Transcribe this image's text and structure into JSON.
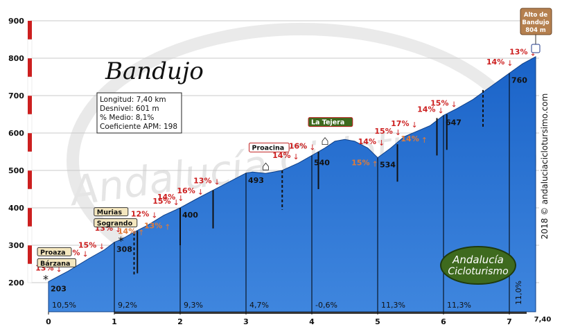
{
  "title": "Bandujo",
  "info": {
    "longitud": "Longitud: 7,40 km",
    "desnivel": "Desnivel: 601 m",
    "medio": "% Medio: 8,1%",
    "apm": "Coeficiente APM: 198"
  },
  "summit_label": [
    "Alto de",
    "Bandujo",
    "804 m"
  ],
  "side_credit": "2018 © andaluciaciclotursimo.com",
  "watermark": "Andalucía Cicloturismo",
  "colors": {
    "fill": "#1a63c8",
    "fill_light": "#4f93e6",
    "gradient_red": "#cc1f1f",
    "orange": "#e07b39",
    "place_fill": "#f4e7bf",
    "summit_fill": "#b5804f",
    "highlight_fill": "#3e6a1e"
  },
  "chart_data": {
    "type": "area",
    "xlim": [
      0,
      7.4
    ],
    "ylim": [
      200,
      900
    ],
    "x_ticks": [
      0,
      1,
      2,
      3,
      4,
      5,
      6,
      7
    ],
    "x_tick_labels": [
      "0",
      "1",
      "2",
      "3",
      "4",
      "5",
      "6",
      "7"
    ],
    "x_end_label": "7,40",
    "y_ticks": [
      200,
      300,
      400,
      500,
      600,
      700,
      800,
      900
    ],
    "profile": [
      [
        0,
        203
      ],
      [
        0.3,
        231
      ],
      [
        0.6,
        263
      ],
      [
        0.85,
        288
      ],
      [
        1,
        308
      ],
      [
        1.1,
        315
      ],
      [
        1.3,
        335
      ],
      [
        1.5,
        353
      ],
      [
        1.75,
        380
      ],
      [
        2,
        400
      ],
      [
        2.25,
        424
      ],
      [
        2.5,
        447
      ],
      [
        2.75,
        470
      ],
      [
        3,
        493
      ],
      [
        3.1,
        496
      ],
      [
        3.3,
        492
      ],
      [
        3.55,
        500
      ],
      [
        3.8,
        520
      ],
      [
        4,
        540
      ],
      [
        4.2,
        560
      ],
      [
        4.35,
        578
      ],
      [
        4.5,
        583
      ],
      [
        4.65,
        578
      ],
      [
        4.85,
        560
      ],
      [
        5,
        534
      ],
      [
        5.2,
        560
      ],
      [
        5.4,
        590
      ],
      [
        5.6,
        605
      ],
      [
        5.8,
        620
      ],
      [
        6,
        647
      ],
      [
        6.2,
        665
      ],
      [
        6.45,
        690
      ],
      [
        6.7,
        722
      ],
      [
        7,
        760
      ],
      [
        7.2,
        785
      ],
      [
        7.4,
        804
      ]
    ],
    "km_gradients": [
      {
        "label": "10,5%",
        "km": 0
      },
      {
        "label": "9,2%",
        "km": 1
      },
      {
        "label": "9,3%",
        "km": 2
      },
      {
        "label": "4,7%",
        "km": 3
      },
      {
        "label": "-0,6%",
        "km": 4
      },
      {
        "label": "11,3%",
        "km": 5
      },
      {
        "label": "11,3%",
        "km": 6
      },
      {
        "label": "11,0%",
        "km": 7,
        "vertical": true
      }
    ],
    "km_altitudes": [
      {
        "label": "203",
        "km": 0,
        "alt": 203
      },
      {
        "label": "308",
        "km": 1,
        "alt": 308
      },
      {
        "label": "400",
        "km": 2,
        "alt": 400
      },
      {
        "label": "493",
        "km": 3,
        "alt": 493
      },
      {
        "label": "540",
        "km": 4,
        "alt": 540
      },
      {
        "label": "534",
        "km": 5,
        "alt": 534
      },
      {
        "label": "647",
        "km": 6,
        "alt": 647
      },
      {
        "label": "760",
        "km": 7,
        "alt": 760
      }
    ],
    "slope_marks": [
      {
        "label": "13%",
        "km": 0.1,
        "alt": 203,
        "color": "red",
        "side": "right",
        "dy": -6
      },
      {
        "label": "15%",
        "km": 0.5,
        "alt": 255,
        "color": "red",
        "side": "left"
      },
      {
        "label": "15%",
        "km": 0.75,
        "alt": 275,
        "color": "red",
        "side": "left"
      },
      {
        "label": "13%",
        "km": 1.0,
        "alt": 320,
        "color": "red",
        "side": "left"
      },
      {
        "label": "14%",
        "km": 1.35,
        "alt": 338,
        "color": "orange",
        "side": "right",
        "dy": 14
      },
      {
        "label": "12%",
        "km": 1.55,
        "alt": 358,
        "color": "red",
        "side": "left"
      },
      {
        "label": "13%",
        "km": 1.75,
        "alt": 368,
        "color": "orange",
        "side": "left",
        "dy": 22
      },
      {
        "label": "15%",
        "km": 1.88,
        "alt": 393,
        "color": "red",
        "side": "left"
      },
      {
        "label": "14%",
        "km": 1.95,
        "alt": 404,
        "color": "red",
        "side": "left"
      },
      {
        "label": "16%",
        "km": 2.25,
        "alt": 420,
        "color": "red",
        "side": "left"
      },
      {
        "label": "13%",
        "km": 2.5,
        "alt": 447,
        "color": "red",
        "side": "left"
      },
      {
        "label": "14%",
        "km": 3.7,
        "alt": 515,
        "color": "red",
        "side": "left"
      },
      {
        "label": "16%",
        "km": 3.95,
        "alt": 540,
        "color": "red",
        "side": "left"
      },
      {
        "label": "14%",
        "km": 5.0,
        "alt": 552,
        "color": "red",
        "side": "left"
      },
      {
        "label": "15%",
        "km": 4.9,
        "alt": 525,
        "color": "orange",
        "side": "left",
        "dy": 16
      },
      {
        "label": "15%",
        "km": 5.25,
        "alt": 580,
        "color": "red",
        "side": "left"
      },
      {
        "label": "17%",
        "km": 5.5,
        "alt": 600,
        "color": "red",
        "side": "left"
      },
      {
        "label": "14%",
        "km": 5.65,
        "alt": 596,
        "color": "orange",
        "side": "left",
        "dy": 20
      },
      {
        "label": "14%",
        "km": 5.9,
        "alt": 638,
        "color": "red",
        "side": "left"
      },
      {
        "label": "15%",
        "km": 6.1,
        "alt": 655,
        "color": "red",
        "side": "left"
      },
      {
        "label": "14%",
        "km": 6.95,
        "alt": 765,
        "color": "red",
        "side": "left"
      },
      {
        "label": "13%",
        "km": 7.3,
        "alt": 792,
        "color": "red",
        "side": "left"
      }
    ],
    "places": [
      {
        "label": "Proaza",
        "km": 0,
        "alt": 203,
        "tag_style": "left-flag"
      },
      {
        "label": "Bárzana",
        "km": 0,
        "alt": 203,
        "tag_style": "right-flag"
      },
      {
        "label": "Murias",
        "km": 1.05,
        "alt": 310,
        "tag_style": "left-flag"
      },
      {
        "label": "Sogrando",
        "km": 1.05,
        "alt": 310,
        "tag_style": "right-flag"
      },
      {
        "label": "Proacina",
        "km": 3.3,
        "alt": 492,
        "tag_style": "box"
      },
      {
        "label": "La Tejera",
        "km": 4.2,
        "alt": 560,
        "tag_style": "box-green"
      }
    ],
    "side_roads": [
      {
        "km": 1.3,
        "from_alt": 333,
        "to_alt": 220,
        "style": "dashed"
      },
      {
        "km": 1.35,
        "from_alt": 338,
        "to_alt": 225,
        "style": "solid"
      },
      {
        "km": 2.0,
        "from_alt": 400,
        "to_alt": 300,
        "style": "solid"
      },
      {
        "km": 2.5,
        "from_alt": 447,
        "to_alt": 345,
        "style": "solid"
      },
      {
        "km": 3.55,
        "from_alt": 500,
        "to_alt": 395,
        "style": "dashed"
      },
      {
        "km": 4.1,
        "from_alt": 550,
        "to_alt": 450,
        "style": "solid"
      },
      {
        "km": 5.3,
        "from_alt": 570,
        "to_alt": 470,
        "style": "solid"
      },
      {
        "km": 5.9,
        "from_alt": 640,
        "to_alt": 540,
        "style": "solid"
      },
      {
        "km": 6.05,
        "from_alt": 650,
        "to_alt": 555,
        "style": "solid"
      },
      {
        "km": 6.6,
        "from_alt": 715,
        "to_alt": 615,
        "style": "dashed"
      }
    ]
  }
}
